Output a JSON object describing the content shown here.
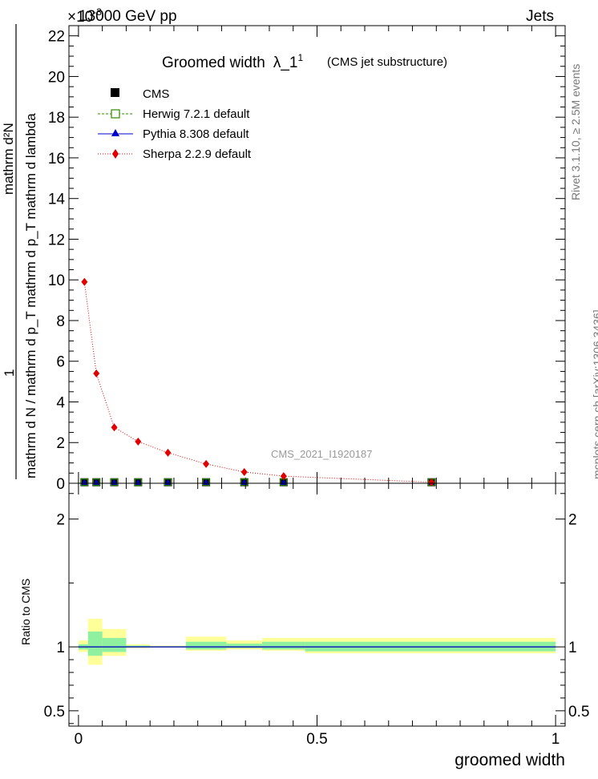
{
  "header": {
    "energy_label": "13000 GeV pp",
    "category_label": "Jets",
    "exponent_label": "×10",
    "exponent_power": "-3"
  },
  "side_labels": {
    "rivet": "Rivet 3.1.10, ≥ 2.5M events",
    "mcplots": "mcplots.cern.ch [arXiv:1306.3436]"
  },
  "watermark": "CMS_2021_I1920187",
  "colors": {
    "cms": "#000000",
    "herwig": "#2e8b00",
    "pythia": "#0000cc",
    "sherpa": "#e00000",
    "band_yellow": "#ffff99",
    "band_green": "#8ff09f"
  },
  "chart_data": [
    {
      "type": "line",
      "title": "Groomed width",
      "title_symbol": "λ_1",
      "title_sup": "1",
      "subtitle": "(CMS jet substructure)",
      "ylabel_num": "mathrm d²N",
      "ylabel_den": "mathrm d N / mathrm d p_T   mathrm d p_T mathrm d lambda",
      "ylabel_one": "1",
      "ylim": [
        0,
        22.5
      ],
      "yticks": [
        "0",
        "2",
        "4",
        "6",
        "8",
        "10",
        "12",
        "14",
        "16",
        "18",
        "20",
        "22"
      ],
      "legend_position": "top-left",
      "x": [
        0.0125,
        0.0375,
        0.075,
        0.125,
        0.1875,
        0.2675,
        0.3475,
        0.43,
        0.74
      ],
      "series": [
        {
          "name": "CMS",
          "marker": "square",
          "values": [
            0.05,
            0.05,
            0.05,
            0.05,
            0.05,
            0.05,
            0.05,
            0.05,
            0.05
          ]
        },
        {
          "name": "Herwig 7.2.1 default",
          "marker": "open-square",
          "values": [
            0.05,
            0.05,
            0.05,
            0.05,
            0.05,
            0.05,
            0.05,
            0.05,
            0.05
          ]
        },
        {
          "name": "Pythia 8.308 default",
          "marker": "triangle",
          "values": [
            0.05,
            0.05,
            0.05,
            0.05,
            0.05,
            0.05,
            0.05,
            0.05,
            0.05
          ]
        },
        {
          "name": "Sherpa 2.2.9 default",
          "marker": "diamond",
          "values": [
            9.9,
            5.4,
            2.75,
            2.05,
            1.5,
            0.95,
            0.55,
            0.35,
            0.05
          ]
        }
      ]
    },
    {
      "type": "line",
      "ylabel": "Ratio to CMS",
      "xlabel": "groomed width",
      "xlim": [
        -0.02,
        1.02
      ],
      "ylim": [
        0.38,
        2.28
      ],
      "yticks": [
        "0.5",
        "1",
        "2"
      ],
      "xticks": [
        "0",
        "0.5",
        "1"
      ],
      "bins": [
        {
          "lo": 0.0,
          "hi": 0.02,
          "yellow": [
            0.96,
            1.05
          ],
          "green": [
            0.98,
            1.02
          ]
        },
        {
          "lo": 0.02,
          "hi": 0.05,
          "yellow": [
            0.86,
            1.22
          ],
          "green": [
            0.93,
            1.12
          ]
        },
        {
          "lo": 0.05,
          "hi": 0.1,
          "yellow": [
            0.93,
            1.14
          ],
          "green": [
            0.96,
            1.07
          ]
        },
        {
          "lo": 0.1,
          "hi": 0.15,
          "yellow": [
            0.99,
            1.02
          ],
          "green": [
            0.995,
            1.01
          ]
        },
        {
          "lo": 0.15,
          "hi": 0.225,
          "yellow": [
            0.995,
            1.01
          ],
          "green": [
            0.997,
            1.005
          ]
        },
        {
          "lo": 0.225,
          "hi": 0.31,
          "yellow": [
            0.97,
            1.08
          ],
          "green": [
            0.98,
            1.04
          ]
        },
        {
          "lo": 0.31,
          "hi": 0.385,
          "yellow": [
            0.98,
            1.05
          ],
          "green": [
            0.99,
            1.025
          ]
        },
        {
          "lo": 0.385,
          "hi": 0.475,
          "yellow": [
            0.97,
            1.07
          ],
          "green": [
            0.98,
            1.04
          ]
        },
        {
          "lo": 0.475,
          "hi": 1.0,
          "yellow": [
            0.95,
            1.07
          ],
          "green": [
            0.965,
            1.04
          ]
        }
      ],
      "series": [
        {
          "name": "Herwig 7.2.1 default",
          "values": [
            1,
            1,
            1,
            1,
            1,
            1,
            1,
            1,
            1
          ]
        },
        {
          "name": "Pythia 8.308 default",
          "values": [
            1,
            1,
            1,
            1,
            1,
            1,
            1,
            1,
            1
          ]
        }
      ]
    }
  ]
}
